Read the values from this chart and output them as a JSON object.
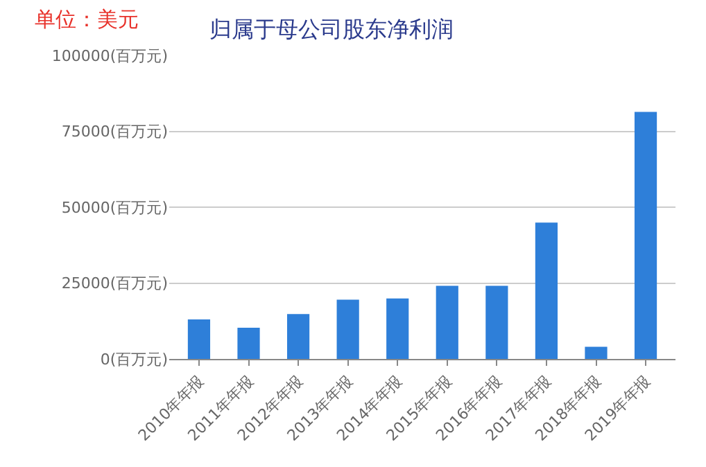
{
  "chart_data": {
    "type": "bar",
    "title": "归属于母公司股东净利润",
    "annotations": [
      "单位：美元"
    ],
    "categories": [
      "2010年年报",
      "2011年年报",
      "2012年年报",
      "2013年年报",
      "2014年年报",
      "2015年年报",
      "2016年年报",
      "2017年年报",
      "2018年年报",
      "2019年年报"
    ],
    "values": [
      13000,
      10300,
      14800,
      19500,
      19900,
      24100,
      24100,
      44900,
      4000,
      81400
    ],
    "color": "#2e7fd9",
    "ylim": [
      0,
      100000
    ],
    "yticks": [
      {
        "value": 0,
        "label": "0(百万元)"
      },
      {
        "value": 25000,
        "label": "25000(百万元)"
      },
      {
        "value": 50000,
        "label": "50000(百万元)"
      },
      {
        "value": 75000,
        "label": "75000(百万元)"
      },
      {
        "value": 100000,
        "label": "100000(百万元)"
      }
    ],
    "grid": true,
    "legend": false
  }
}
